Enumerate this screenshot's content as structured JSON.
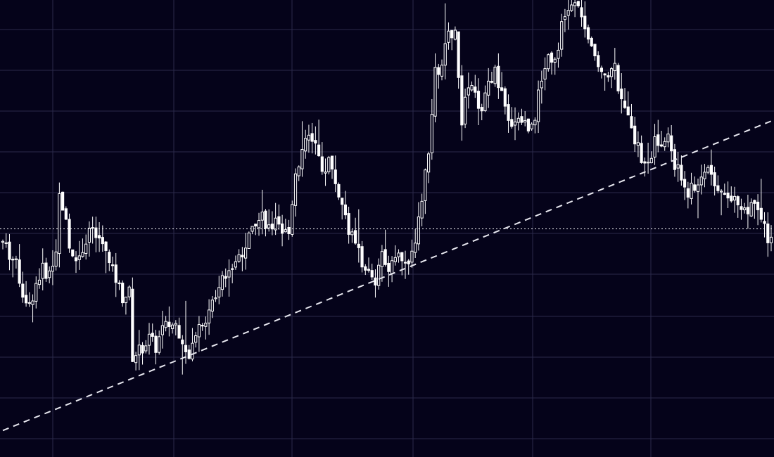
{
  "colors": {
    "background": "#05031a",
    "grid": "#2a2a4a",
    "candle": "#ffffff",
    "trendline": "#e8e8f0",
    "price_line": "#ffffff"
  },
  "chart_data": {
    "type": "candlestick",
    "grid": true,
    "x_tick_labels": [],
    "y_tick_labels": [],
    "price_line_value": 0.5,
    "ylim": [
      0,
      1
    ],
    "xlim": [
      0,
      231
    ],
    "trendline": {
      "style": "dashed",
      "start": [
        0,
        0.058
      ],
      "end": [
        231,
        0.735
      ]
    },
    "close_path": [
      [
        0,
        0.47
      ],
      [
        4,
        0.42
      ],
      [
        6,
        0.36
      ],
      [
        8,
        0.33
      ],
      [
        10,
        0.38
      ],
      [
        12,
        0.41
      ],
      [
        14,
        0.4
      ],
      [
        16,
        0.46
      ],
      [
        17,
        0.57
      ],
      [
        18,
        0.55
      ],
      [
        20,
        0.47
      ],
      [
        22,
        0.43
      ],
      [
        24,
        0.46
      ],
      [
        26,
        0.5
      ],
      [
        28,
        0.48
      ],
      [
        30,
        0.47
      ],
      [
        32,
        0.42
      ],
      [
        34,
        0.39
      ],
      [
        36,
        0.35
      ],
      [
        38,
        0.36
      ],
      [
        39,
        0.22
      ],
      [
        42,
        0.24
      ],
      [
        44,
        0.26
      ],
      [
        46,
        0.24
      ],
      [
        48,
        0.28
      ],
      [
        50,
        0.29
      ],
      [
        52,
        0.29
      ],
      [
        54,
        0.26
      ],
      [
        56,
        0.23
      ],
      [
        58,
        0.28
      ],
      [
        60,
        0.3
      ],
      [
        62,
        0.31
      ],
      [
        64,
        0.36
      ],
      [
        66,
        0.4
      ],
      [
        68,
        0.41
      ],
      [
        70,
        0.43
      ],
      [
        72,
        0.45
      ],
      [
        74,
        0.48
      ],
      [
        76,
        0.52
      ],
      [
        78,
        0.53
      ],
      [
        80,
        0.5
      ],
      [
        82,
        0.51
      ],
      [
        84,
        0.48
      ],
      [
        86,
        0.5
      ],
      [
        88,
        0.62
      ],
      [
        90,
        0.67
      ],
      [
        92,
        0.7
      ],
      [
        94,
        0.69
      ],
      [
        96,
        0.62
      ],
      [
        98,
        0.65
      ],
      [
        100,
        0.6
      ],
      [
        102,
        0.55
      ],
      [
        104,
        0.5
      ],
      [
        106,
        0.46
      ],
      [
        108,
        0.43
      ],
      [
        110,
        0.4
      ],
      [
        112,
        0.37
      ],
      [
        114,
        0.45
      ],
      [
        116,
        0.42
      ],
      [
        118,
        0.45
      ],
      [
        120,
        0.44
      ],
      [
        122,
        0.41
      ],
      [
        124,
        0.48
      ],
      [
        126,
        0.57
      ],
      [
        128,
        0.66
      ],
      [
        130,
        0.84
      ],
      [
        132,
        0.85
      ],
      [
        134,
        0.94
      ],
      [
        136,
        0.92
      ],
      [
        138,
        0.74
      ],
      [
        140,
        0.81
      ],
      [
        142,
        0.79
      ],
      [
        144,
        0.75
      ],
      [
        146,
        0.82
      ],
      [
        148,
        0.84
      ],
      [
        150,
        0.79
      ],
      [
        152,
        0.73
      ],
      [
        154,
        0.74
      ],
      [
        156,
        0.74
      ],
      [
        158,
        0.72
      ],
      [
        160,
        0.75
      ],
      [
        162,
        0.83
      ],
      [
        164,
        0.88
      ],
      [
        166,
        0.87
      ],
      [
        168,
        0.94
      ],
      [
        170,
        0.98
      ],
      [
        172,
        0.99
      ],
      [
        174,
        0.97
      ],
      [
        176,
        0.9
      ],
      [
        178,
        0.88
      ],
      [
        180,
        0.85
      ],
      [
        182,
        0.84
      ],
      [
        184,
        0.85
      ],
      [
        186,
        0.77
      ],
      [
        188,
        0.76
      ],
      [
        190,
        0.7
      ],
      [
        192,
        0.65
      ],
      [
        194,
        0.64
      ],
      [
        196,
        0.69
      ],
      [
        198,
        0.68
      ],
      [
        200,
        0.7
      ],
      [
        202,
        0.64
      ],
      [
        204,
        0.61
      ],
      [
        206,
        0.58
      ],
      [
        208,
        0.59
      ],
      [
        210,
        0.61
      ],
      [
        212,
        0.64
      ],
      [
        214,
        0.6
      ],
      [
        216,
        0.59
      ],
      [
        218,
        0.58
      ],
      [
        220,
        0.56
      ],
      [
        222,
        0.55
      ],
      [
        224,
        0.54
      ],
      [
        226,
        0.56
      ],
      [
        228,
        0.53
      ],
      [
        230,
        0.48
      ]
    ]
  }
}
